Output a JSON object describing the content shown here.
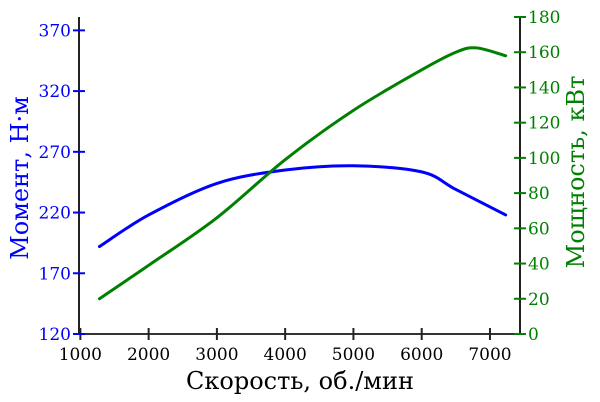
{
  "chart_data": {
    "type": "line",
    "xlabel": "Скорость, об./мин",
    "ylabel_left": "Момент, Н·м",
    "ylabel_right": "Мощность, кВт",
    "xlim": [
      980,
      7440
    ],
    "ylim_left": [
      120,
      381
    ],
    "ylim_right": [
      0,
      180
    ],
    "xticks": [
      1000,
      2000,
      3000,
      4000,
      5000,
      6000,
      7000
    ],
    "yticks_left": [
      120,
      170,
      220,
      270,
      320,
      370
    ],
    "yticks_right": [
      0,
      20,
      40,
      60,
      80,
      100,
      120,
      140,
      160,
      180
    ],
    "grid": false,
    "colors": {
      "torque": "#0000ff",
      "power": "#008000",
      "axis": "#000000"
    },
    "series": [
      {
        "name": "Момент",
        "axis": "left",
        "x": [
          1280,
          2000,
          3000,
          4000,
          5000,
          6000,
          6500,
          7230
        ],
        "y": [
          192,
          218,
          244,
          255,
          258.5,
          253.5,
          239,
          218
        ]
      },
      {
        "name": "Мощность",
        "axis": "right",
        "x": [
          1280,
          2000,
          3000,
          4000,
          5000,
          6000,
          6500,
          6800,
          7230
        ],
        "y": [
          20,
          39,
          66,
          99,
          127,
          150,
          160,
          162.5,
          158
        ]
      }
    ]
  }
}
